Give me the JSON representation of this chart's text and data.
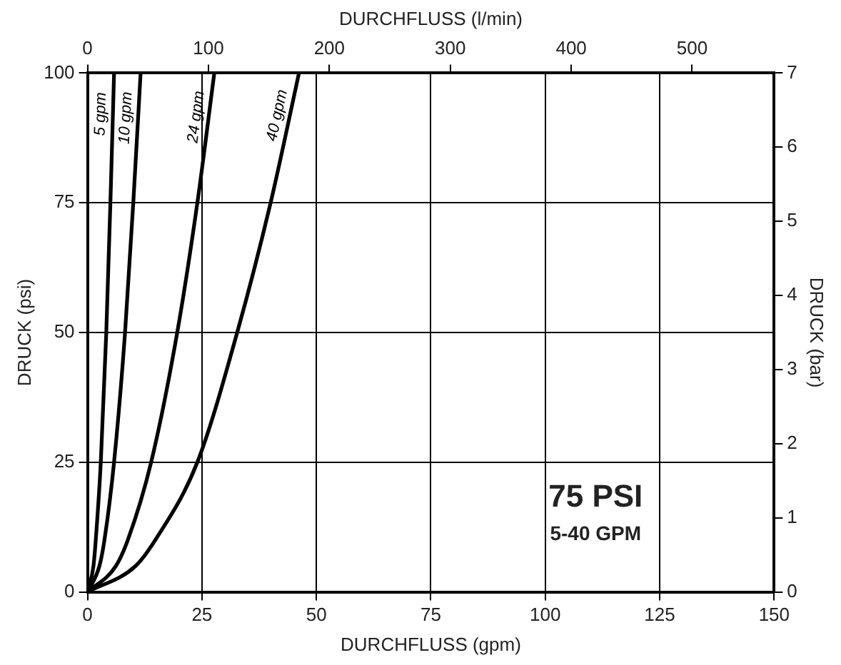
{
  "chart_data": {
    "type": "line",
    "xlabel": "DURCHFLUSS (gpm)",
    "ylabel": "DRUCK (psi)",
    "x2label": "DURCHFLUSS (l/min)",
    "y2label": "DRUCK (bar)",
    "xlim": [
      0,
      150
    ],
    "xticks": [
      0,
      25,
      50,
      75,
      100,
      125,
      150
    ],
    "ylim": [
      0,
      100
    ],
    "yticks": [
      0,
      25,
      50,
      75,
      100
    ],
    "x2lim": [
      0,
      567.8
    ],
    "x2ticks": [
      0,
      100,
      200,
      300,
      400,
      500
    ],
    "y2lim": [
      0,
      7
    ],
    "y2ticks": [
      0,
      1,
      2,
      3,
      4,
      5,
      6,
      7
    ],
    "grid": true,
    "legend": false,
    "marker": "none",
    "line_style": "solid",
    "annotations": [
      "75 PSI",
      "5-40 GPM"
    ],
    "series": [
      {
        "name": "5 gpm",
        "color": "#000000",
        "x": [
          0,
          1.3,
          1.8,
          2.9,
          4.1,
          5,
          5.8
        ],
        "values": [
          0,
          5,
          10,
          25,
          50,
          75,
          100
        ]
      },
      {
        "name": "10 gpm",
        "color": "#000000",
        "x": [
          0,
          2.6,
          3.7,
          5.8,
          8.2,
          10,
          11.6
        ],
        "values": [
          0,
          5,
          10,
          25,
          50,
          75,
          100
        ]
      },
      {
        "name": "24 gpm",
        "color": "#000000",
        "x": [
          0,
          6.2,
          8.8,
          13.9,
          19.6,
          24,
          27.7
        ],
        "values": [
          0,
          5,
          10,
          25,
          50,
          75,
          100
        ]
      },
      {
        "name": "40 gpm",
        "color": "#000000",
        "x": [
          0,
          10.5,
          14.8,
          24,
          32.7,
          40,
          46.2
        ],
        "values": [
          0,
          5,
          10,
          25,
          50,
          75,
          100
        ]
      }
    ]
  }
}
